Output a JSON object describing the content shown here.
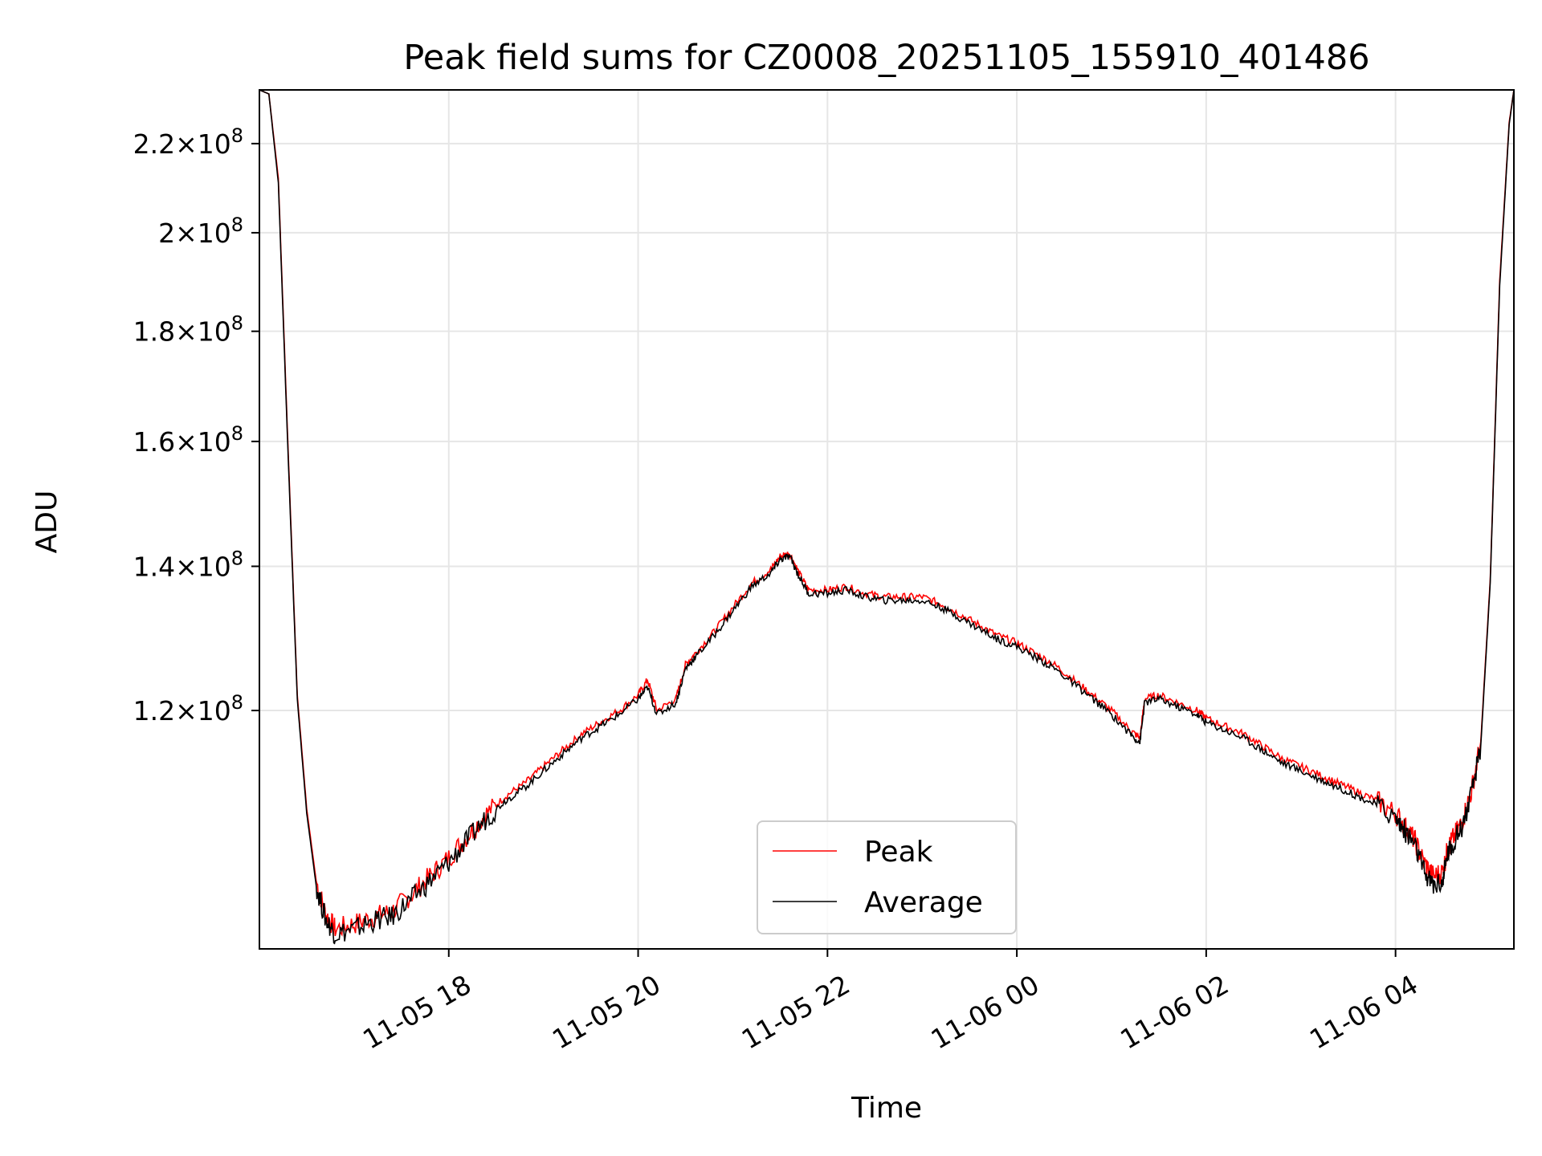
{
  "chart_data": {
    "type": "line",
    "title": "Peak field sums for CZ0008_20251105_155910_401486",
    "xlabel": "Time",
    "ylabel": "ADU",
    "y_scale": "log",
    "grid": true,
    "legend_position": "lower-center",
    "x_range_hours": [
      16.0,
      29.25
    ],
    "ylim": [
      93000000,
      233000000
    ],
    "x_ticks": [
      {
        "hour": 18,
        "label": "11-05 18"
      },
      {
        "hour": 20,
        "label": "11-05 20"
      },
      {
        "hour": 22,
        "label": "11-05 22"
      },
      {
        "hour": 24,
        "label": "11-06 00"
      },
      {
        "hour": 26,
        "label": "11-06 02"
      },
      {
        "hour": 28,
        "label": "11-06 04"
      }
    ],
    "y_ticks": [
      {
        "value": 120000000,
        "mantissa": "1.2",
        "exp": "8"
      },
      {
        "value": 140000000,
        "mantissa": "1.4",
        "exp": "8"
      },
      {
        "value": 160000000,
        "mantissa": "1.6",
        "exp": "8"
      },
      {
        "value": 180000000,
        "mantissa": "1.8",
        "exp": "8"
      },
      {
        "value": 200000000,
        "mantissa": "2",
        "exp": "8"
      },
      {
        "value": 220000000,
        "mantissa": "2.2",
        "exp": "8"
      }
    ],
    "series": [
      {
        "name": "Peak",
        "color": "#ff0000",
        "x_hours": [
          16.0,
          16.1,
          16.2,
          16.3,
          16.4,
          16.5,
          16.6,
          16.7,
          16.8,
          17.0,
          17.2,
          17.4,
          17.6,
          17.8,
          18.0,
          18.2,
          18.4,
          18.6,
          18.8,
          19.0,
          19.2,
          19.4,
          19.6,
          19.8,
          20.0,
          20.1,
          20.2,
          20.4,
          20.5,
          20.6,
          20.8,
          21.0,
          21.2,
          21.4,
          21.5,
          21.6,
          21.7,
          21.8,
          22.0,
          22.2,
          22.4,
          22.6,
          22.8,
          23.0,
          23.2,
          23.4,
          23.6,
          23.8,
          24.0,
          24.2,
          24.4,
          24.6,
          24.8,
          25.0,
          25.2,
          25.3,
          25.35,
          25.5,
          25.7,
          25.9,
          26.0,
          26.2,
          26.4,
          26.6,
          26.8,
          27.0,
          27.2,
          27.4,
          27.6,
          27.8,
          28.0,
          28.1,
          28.2,
          28.3,
          28.4,
          28.5,
          28.55,
          28.6,
          28.7,
          28.8,
          28.9,
          29.0,
          29.1,
          29.2,
          29.25
        ],
        "y": [
          233000000,
          232000000,
          212000000,
          160000000,
          122000000,
          108000000,
          100000000,
          96500000,
          95000000,
          95500000,
          96200000,
          96800000,
          98500000,
          100500000,
          102500000,
          105000000,
          107500000,
          109500000,
          111000000,
          113000000,
          115000000,
          117000000,
          118500000,
          120000000,
          122000000,
          124000000,
          120000000,
          121500000,
          126000000,
          127500000,
          130500000,
          134000000,
          137500000,
          139500000,
          141500000,
          142000000,
          139000000,
          136500000,
          136500000,
          137000000,
          136000000,
          135500000,
          135500000,
          135500000,
          134500000,
          133000000,
          131500000,
          130000000,
          129000000,
          127500000,
          126000000,
          124000000,
          122000000,
          120000000,
          117500000,
          116500000,
          121500000,
          122000000,
          121000000,
          120000000,
          119000000,
          118000000,
          117000000,
          115500000,
          114000000,
          113000000,
          112000000,
          111000000,
          110000000,
          109000000,
          107500000,
          106000000,
          104500000,
          102000000,
          100500000,
          101000000,
          103500000,
          104500000,
          106500000,
          110000000,
          116000000,
          138000000,
          190000000,
          225000000,
          233000000
        ]
      },
      {
        "name": "Average",
        "color": "#000000",
        "x_hours": [
          16.0,
          16.1,
          16.2,
          16.3,
          16.4,
          16.5,
          16.6,
          16.7,
          16.8,
          17.0,
          17.2,
          17.4,
          17.6,
          17.8,
          18.0,
          18.2,
          18.4,
          18.6,
          18.8,
          19.0,
          19.2,
          19.4,
          19.6,
          19.8,
          20.0,
          20.1,
          20.2,
          20.4,
          20.5,
          20.6,
          20.8,
          21.0,
          21.2,
          21.4,
          21.5,
          21.6,
          21.7,
          21.8,
          22.0,
          22.2,
          22.4,
          22.6,
          22.8,
          23.0,
          23.2,
          23.4,
          23.6,
          23.8,
          24.0,
          24.2,
          24.4,
          24.6,
          24.8,
          25.0,
          25.2,
          25.3,
          25.35,
          25.5,
          25.7,
          25.9,
          26.0,
          26.2,
          26.4,
          26.6,
          26.8,
          27.0,
          27.2,
          27.4,
          27.6,
          27.8,
          28.0,
          28.1,
          28.2,
          28.3,
          28.4,
          28.5,
          28.55,
          28.6,
          28.7,
          28.8,
          28.9,
          29.0,
          29.1,
          29.2,
          29.25
        ],
        "y": [
          233000000,
          232000000,
          211000000,
          159000000,
          121500000,
          107500000,
          99500000,
          96000000,
          94500000,
          95000000,
          95800000,
          96300000,
          98000000,
          100000000,
          102000000,
          104500000,
          107000000,
          109000000,
          110500000,
          112500000,
          114500000,
          116500000,
          118000000,
          119500000,
          121500000,
          123000000,
          119500000,
          121000000,
          125500000,
          127000000,
          130000000,
          133500000,
          137000000,
          139000000,
          141000000,
          141500000,
          138500000,
          136000000,
          136000000,
          136500000,
          135500000,
          135000000,
          135000000,
          135000000,
          134000000,
          132500000,
          131000000,
          129500000,
          128500000,
          127000000,
          125500000,
          123500000,
          121500000,
          119500000,
          117000000,
          116000000,
          121000000,
          121500000,
          120500000,
          119500000,
          118500000,
          117500000,
          116500000,
          115000000,
          113500000,
          112500000,
          111500000,
          110500000,
          109500000,
          108500000,
          107000000,
          105500000,
          104000000,
          101000000,
          99500000,
          100000000,
          103000000,
          104000000,
          106000000,
          109500000,
          115500000,
          137500000,
          189000000,
          224500000,
          233000000
        ]
      }
    ]
  }
}
